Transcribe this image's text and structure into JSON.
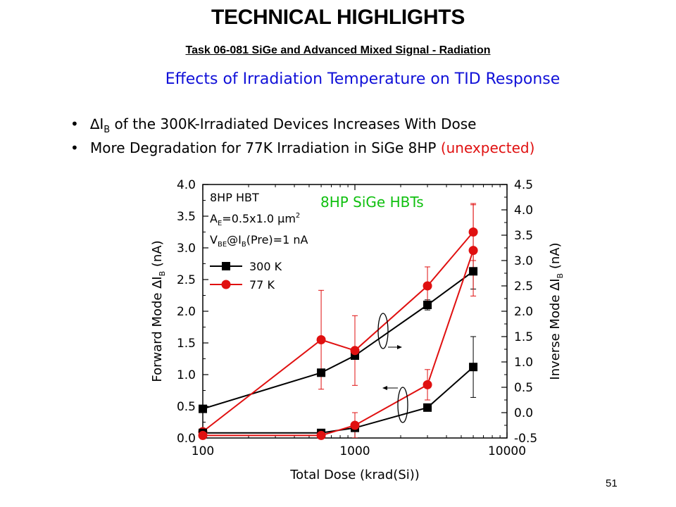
{
  "header": {
    "title": "TECHNICAL HIGHLIGHTS",
    "subtitle": "Task 06-081 SiGe and Advanced Mixed Signal - Radiation"
  },
  "slide": {
    "heading": "Effects of Irradiation Temperature on TID Response",
    "bullets": [
      {
        "pre": "∆I",
        "sub": "B",
        "text": " of the 300K-Irradiated Devices Increases With Dose",
        "highlight": ""
      },
      {
        "pre": "",
        "sub": "",
        "text": "More Degradation for 77K Irradiation in SiGe 8HP ",
        "highlight": "(unexpected)"
      }
    ],
    "page_number": "51"
  },
  "chart_data": {
    "type": "line",
    "chart_title": "8HP SiGe HBTs",
    "chart_title_color": "#10c010",
    "xlabel": "Total Dose (krad(Si))",
    "xscale": "log",
    "xlim": [
      100,
      10000
    ],
    "xticks": [
      "100",
      "1000",
      "10000"
    ],
    "ylabel_left": {
      "pre": "Forward Mode ∆I",
      "sub": "B",
      "post": " (nA)"
    },
    "ylim_left": [
      0,
      4.0
    ],
    "yticks_left": [
      "0.0",
      "0.5",
      "1.0",
      "1.5",
      "2.0",
      "2.5",
      "3.0",
      "3.5",
      "4.0"
    ],
    "ylabel_right": {
      "pre": "Inverse Mode ∆I",
      "sub": "B",
      "post": " (nA)"
    },
    "ylim_right": [
      -0.5,
      4.5
    ],
    "yticks_right": [
      "-0.5",
      "0.0",
      "0.5",
      "1.0",
      "1.5",
      "2.0",
      "2.5",
      "3.0",
      "3.5",
      "4.0",
      "4.5"
    ],
    "annotation": {
      "line1": "8HP HBT",
      "line2_pre": "A",
      "line2_sub": "E",
      "line2_post": "=0.5x1.0 µm",
      "line2_sup": "2",
      "line3_pre": "V",
      "line3_sub1": "BE",
      "line3_mid": "@I",
      "line3_sub2": "B",
      "line3_post": "(Pre)=1 nA"
    },
    "legend_placement": "upper-left",
    "series": [
      {
        "name": "300 K",
        "axis": "left",
        "marker": "square",
        "color": "#000000",
        "x": [
          100,
          600,
          1000,
          3000,
          6000
        ],
        "y": [
          0.46,
          1.03,
          1.3,
          2.1,
          2.63
        ],
        "err": [
          0.0,
          0.0,
          0.0,
          0.08,
          0.28
        ]
      },
      {
        "name": "77 K",
        "axis": "left",
        "marker": "circle",
        "color": "#e01010",
        "x": [
          100,
          600,
          1000,
          3000,
          6000
        ],
        "y": [
          0.1,
          1.55,
          1.38,
          2.4,
          3.25
        ],
        "err": [
          0.0,
          0.78,
          0.55,
          0.3,
          0.45
        ]
      },
      {
        "name": "300 K",
        "axis": "right",
        "marker": "square",
        "color": "#000000",
        "x": [
          100,
          600,
          1000,
          3000,
          6000
        ],
        "y": [
          -0.4,
          -0.4,
          -0.3,
          0.1,
          0.9
        ],
        "err": [
          0.0,
          0.0,
          0.0,
          0.05,
          0.6
        ]
      },
      {
        "name": "77 K",
        "axis": "right",
        "marker": "circle",
        "color": "#e01010",
        "x": [
          100,
          600,
          1000,
          3000,
          6000
        ],
        "y": [
          -0.45,
          -0.45,
          -0.25,
          0.55,
          3.2
        ],
        "err": [
          0.0,
          0.0,
          0.25,
          0.3,
          0.9
        ]
      }
    ]
  }
}
